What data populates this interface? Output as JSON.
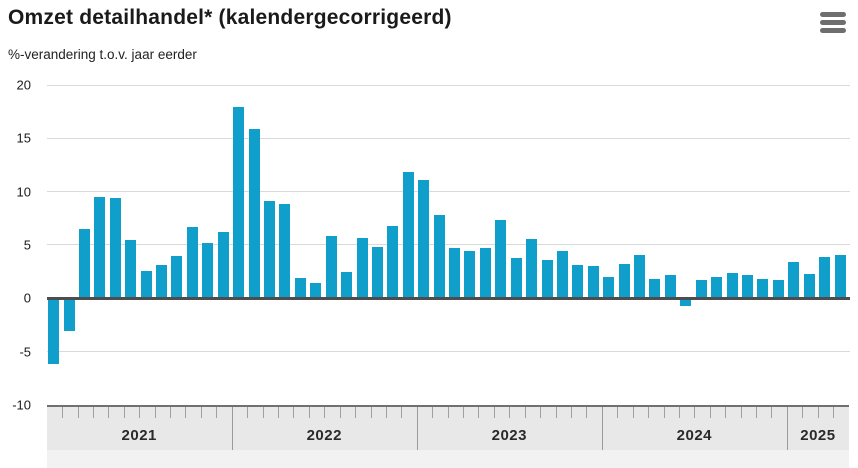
{
  "header": {
    "title": "Omzet detailhandel* (kalendergecorrigeerd)",
    "subtitle": "%-verandering t.o.v. jaar eerder"
  },
  "colors": {
    "bar": "#0f9fca",
    "zero_line": "#4d4d4d",
    "gridline": "#d9d9d9",
    "band_border": "#707070",
    "band_fill": "#e8e8e8",
    "band_lower_fill": "#f2f2f2",
    "month_tick": "#a0a0a0",
    "year_separator": "#9a9a9a",
    "menu_icon": "#6e6e6e"
  },
  "chart_data": {
    "type": "bar",
    "title": "Omzet detailhandel* (kalendergecorrigeerd)",
    "ylabel": "%-verandering t.o.v. jaar eerder",
    "unit": "%",
    "grid": true,
    "legend": "none",
    "ylim": [
      -10,
      20
    ],
    "yticks": [
      "20",
      "15",
      "10",
      "5",
      "0",
      "-5",
      "-10"
    ],
    "ytick_values": [
      20,
      15,
      10,
      5,
      0,
      -5,
      -10
    ],
    "year_labels": [
      "2021",
      "2022",
      "2023",
      "2024",
      "2025"
    ],
    "categories": [
      "2021-01",
      "2021-02",
      "2021-03",
      "2021-04",
      "2021-05",
      "2021-06",
      "2021-07",
      "2021-08",
      "2021-09",
      "2021-10",
      "2021-11",
      "2021-12",
      "2022-01",
      "2022-02",
      "2022-03",
      "2022-04",
      "2022-05",
      "2022-06",
      "2022-07",
      "2022-08",
      "2022-09",
      "2022-10",
      "2022-11",
      "2022-12",
      "2023-01",
      "2023-02",
      "2023-03",
      "2023-04",
      "2023-05",
      "2023-06",
      "2023-07",
      "2023-08",
      "2023-09",
      "2023-10",
      "2023-11",
      "2023-12",
      "2024-01",
      "2024-02",
      "2024-03",
      "2024-04",
      "2024-05",
      "2024-06",
      "2024-07",
      "2024-08",
      "2024-09",
      "2024-10",
      "2024-11",
      "2024-12",
      "2025-01",
      "2025-02",
      "2025-03",
      "2025-04"
    ],
    "series": [
      {
        "name": "Omzet detailhandel",
        "values": [
          -6.0,
          -2.9,
          6.5,
          9.5,
          9.4,
          5.5,
          2.6,
          3.1,
          4.0,
          6.7,
          5.2,
          6.2,
          17.9,
          15.9,
          9.1,
          8.8,
          1.9,
          1.4,
          5.8,
          2.5,
          5.7,
          4.8,
          6.8,
          11.8,
          11.1,
          7.8,
          4.7,
          4.4,
          4.7,
          7.3,
          3.8,
          5.6,
          3.6,
          4.4,
          3.1,
          3.0,
          2.0,
          3.2,
          4.1,
          1.8,
          2.2,
          -0.6,
          1.7,
          2.0,
          2.4,
          2.2,
          1.8,
          1.7,
          3.4,
          2.3,
          3.9,
          4.1
        ]
      }
    ]
  }
}
